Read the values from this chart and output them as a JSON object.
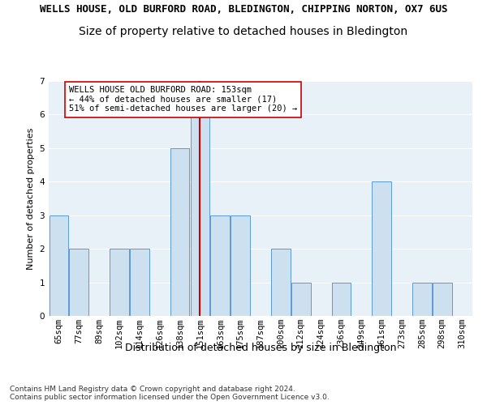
{
  "title": "WELLS HOUSE, OLD BURFORD ROAD, BLEDINGTON, CHIPPING NORTON, OX7 6US",
  "subtitle": "Size of property relative to detached houses in Bledington",
  "xlabel": "Distribution of detached houses by size in Bledington",
  "ylabel": "Number of detached properties",
  "bins": [
    "65sqm",
    "77sqm",
    "89sqm",
    "102sqm",
    "114sqm",
    "126sqm",
    "138sqm",
    "151sqm",
    "163sqm",
    "175sqm",
    "187sqm",
    "200sqm",
    "212sqm",
    "224sqm",
    "236sqm",
    "249sqm",
    "261sqm",
    "273sqm",
    "285sqm",
    "298sqm",
    "310sqm"
  ],
  "bar_values": [
    3,
    2,
    0,
    2,
    2,
    0,
    5,
    6,
    3,
    3,
    0,
    2,
    1,
    0,
    1,
    0,
    4,
    0,
    1,
    1,
    0
  ],
  "bar_color": "#cce0f0",
  "bar_edge_color": "#5b9bd5",
  "highlight_bin_index": 7,
  "highlight_color": "#cc0000",
  "annotation_text": "WELLS HOUSE OLD BURFORD ROAD: 153sqm\n← 44% of detached houses are smaller (17)\n51% of semi-detached houses are larger (20) →",
  "annotation_box_color": "#ffffff",
  "annotation_box_edge_color": "#cc0000",
  "ylim": [
    0,
    7
  ],
  "yticks": [
    0,
    1,
    2,
    3,
    4,
    5,
    6,
    7
  ],
  "background_color": "#e8f0f8",
  "footer_text": "Contains HM Land Registry data © Crown copyright and database right 2024.\nContains public sector information licensed under the Open Government Licence v3.0.",
  "title_fontsize": 9,
  "subtitle_fontsize": 10,
  "xlabel_fontsize": 9,
  "ylabel_fontsize": 8,
  "tick_fontsize": 7.5,
  "annotation_fontsize": 7.5,
  "footer_fontsize": 6.5
}
